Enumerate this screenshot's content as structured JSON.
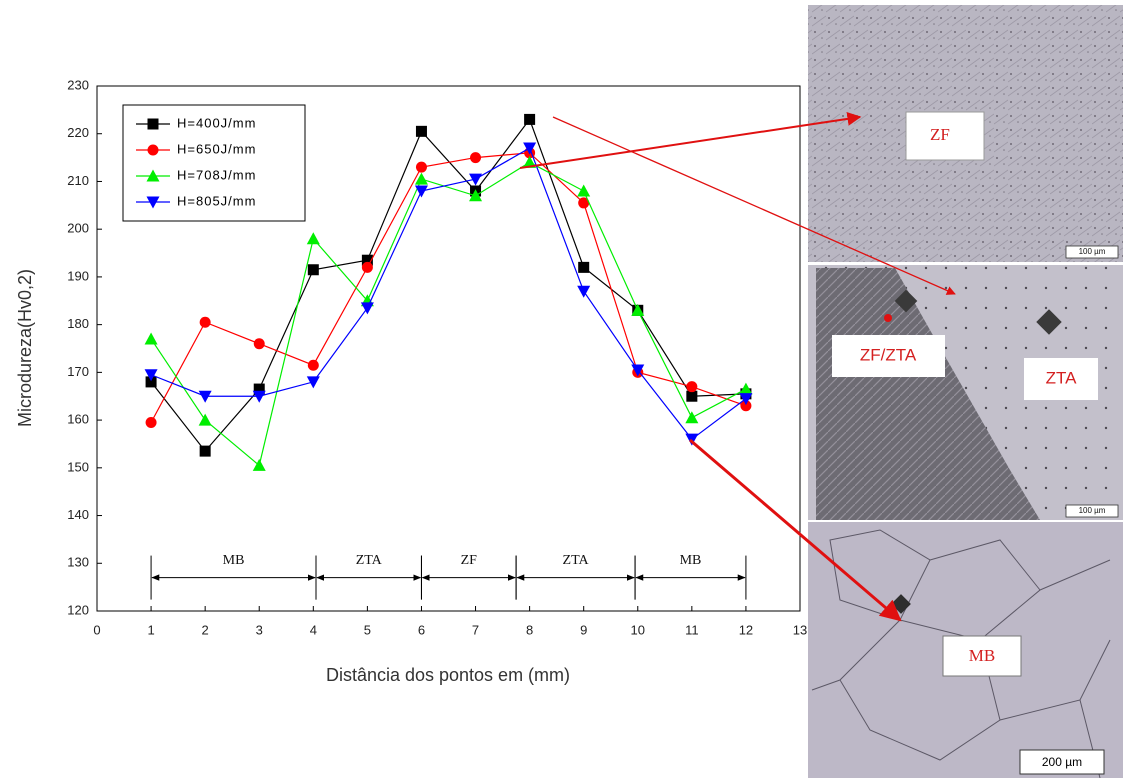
{
  "chart_data": {
    "type": "line",
    "xlabel": "Distância dos pontos em (mm)",
    "ylabel": "Microdureza(Hv0,2)",
    "x": [
      1,
      2,
      3,
      4,
      5,
      6,
      7,
      8,
      9,
      10,
      11,
      12
    ],
    "xlim": [
      0,
      13
    ],
    "xticks": [
      0,
      1,
      2,
      3,
      4,
      5,
      6,
      7,
      8,
      9,
      10,
      11,
      12,
      13
    ],
    "ylim": [
      120,
      230
    ],
    "yticks": [
      120,
      130,
      140,
      150,
      160,
      170,
      180,
      190,
      200,
      210,
      220,
      230
    ],
    "legend_position": "upper left",
    "series": [
      {
        "name": "H=400J/mm",
        "color": "#000000",
        "marker": "square",
        "values": [
          168,
          153.5,
          166.5,
          191.5,
          193.5,
          220.5,
          208,
          223,
          192,
          183,
          165,
          165.5
        ]
      },
      {
        "name": "H=650J/mm",
        "color": "#ff0000",
        "marker": "circle",
        "values": [
          159.5,
          180.5,
          176,
          171.5,
          192,
          213,
          215,
          216,
          205.5,
          170,
          167,
          163
        ]
      },
      {
        "name": "H=708J/mm",
        "color": "#00ee00",
        "marker": "triangle-up",
        "values": [
          177,
          160,
          150.5,
          198,
          185,
          210.5,
          207,
          214,
          208,
          183,
          160.5,
          166.5
        ]
      },
      {
        "name": "H=805J/mm",
        "color": "#0000ff",
        "marker": "triangle-down",
        "values": [
          169.5,
          165,
          165,
          168,
          183.5,
          208,
          210.5,
          217,
          187,
          170.5,
          156,
          164.5
        ]
      }
    ],
    "zones": [
      {
        "label": "MB",
        "from": 1,
        "to": 4.05
      },
      {
        "label": "ZTA",
        "from": 4.05,
        "to": 6
      },
      {
        "label": "ZF",
        "from": 6,
        "to": 7.75
      },
      {
        "label": "ZTA",
        "from": 7.75,
        "to": 9.95
      },
      {
        "label": "MB",
        "from": 9.95,
        "to": 12
      }
    ],
    "zone_level": 127
  },
  "micrographs": [
    {
      "labels": [
        "ZF"
      ],
      "scale": "100 µm"
    },
    {
      "labels": [
        "ZF/ZTA",
        "ZTA"
      ],
      "scale": "100 µm"
    },
    {
      "labels": [
        "MB"
      ],
      "scale": "200 µm"
    }
  ]
}
